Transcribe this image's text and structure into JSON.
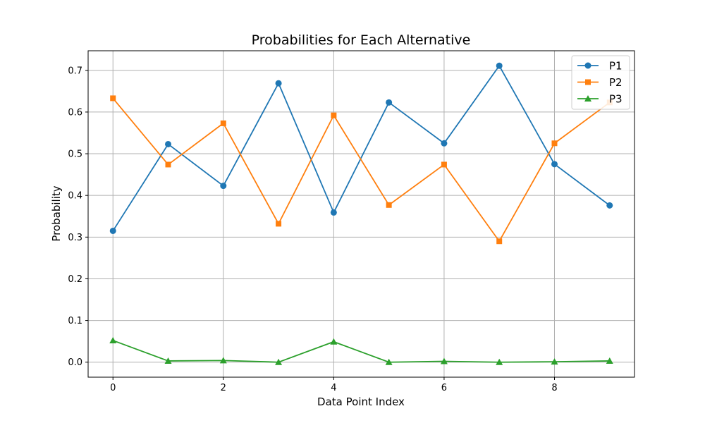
{
  "chart_data": {
    "type": "line",
    "title": "Probabilities for Each Alternative",
    "xlabel": "Data Point Index",
    "ylabel": "Probability",
    "x": [
      0,
      1,
      2,
      3,
      4,
      5,
      6,
      7,
      8,
      9
    ],
    "xlim": [
      -0.45,
      9.45
    ],
    "ylim": [
      -0.036,
      0.747
    ],
    "xticks": [
      0,
      2,
      4,
      6,
      8
    ],
    "yticks": [
      0.0,
      0.1,
      0.2,
      0.3,
      0.4,
      0.5,
      0.6,
      0.7
    ],
    "xtick_labels": [
      "0",
      "2",
      "4",
      "6",
      "8"
    ],
    "ytick_labels": [
      "0.0",
      "0.1",
      "0.2",
      "0.3",
      "0.4",
      "0.5",
      "0.6",
      "0.7"
    ],
    "grid": true,
    "legend": "top-right",
    "series": [
      {
        "name": "P1",
        "color": "#1f77b4",
        "marker": "circle",
        "values": [
          0.315,
          0.523,
          0.423,
          0.669,
          0.359,
          0.623,
          0.525,
          0.711,
          0.475,
          0.376
        ]
      },
      {
        "name": "P2",
        "color": "#ff7f0e",
        "marker": "square",
        "values": [
          0.633,
          0.474,
          0.573,
          0.332,
          0.592,
          0.377,
          0.474,
          0.29,
          0.525,
          0.623
        ]
      },
      {
        "name": "P3",
        "color": "#2ca02c",
        "marker": "triangle",
        "values": [
          0.052,
          0.003,
          0.004,
          0.0,
          0.049,
          0.0,
          0.002,
          0.0,
          0.001,
          0.003
        ]
      }
    ]
  }
}
